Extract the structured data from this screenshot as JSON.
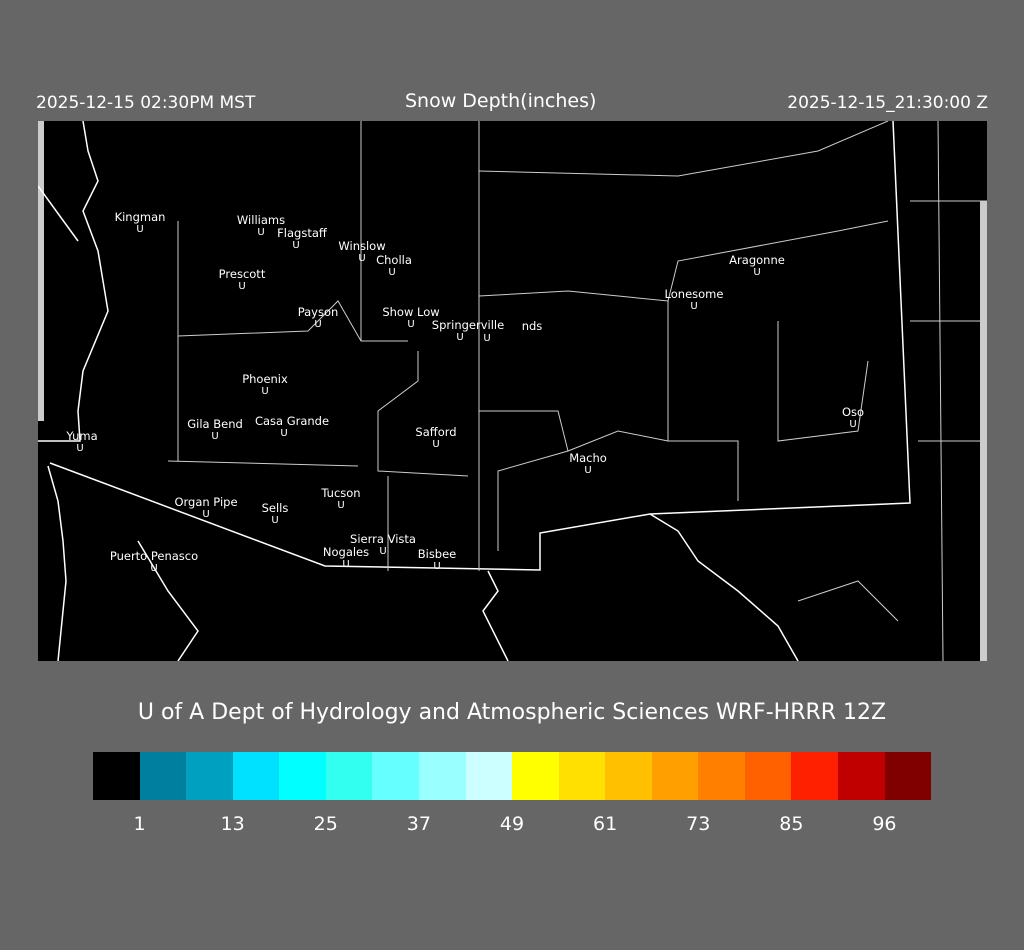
{
  "header": {
    "local_time": "2025-12-15 02:30PM MST",
    "title": "Snow Depth(inches)",
    "valid_time": "2025-12-15_21:30:00 Z"
  },
  "map": {
    "cities": [
      "Kingman",
      "Williams",
      "Flagstaff",
      "Winslow",
      "Cholla",
      "Prescott",
      "Payson",
      "Show Low",
      "Springerville",
      "nds",
      "Lonesome",
      "Aragonne",
      "Phoenix",
      "Yuma",
      "Gila Bend",
      "Casa Grande",
      "Safford",
      "Macho",
      "Oso",
      "Tucson",
      "Organ Pipe",
      "Sells",
      "Sierra Vista",
      "Nogales",
      "Bisbee",
      "Puerto Penasco"
    ],
    "marker_glyph": "U"
  },
  "credit": "U of A Dept of Hydrology and Atmospheric Sciences WRF-HRRR 12Z",
  "colorbar": {
    "colors": [
      "#000000",
      "#007f9f",
      "#00a0c0",
      "#00e0ff",
      "#00ffff",
      "#33fff0",
      "#66ffff",
      "#99ffff",
      "#ccffff",
      "#ffff00",
      "#ffe000",
      "#ffc000",
      "#ffa000",
      "#ff8000",
      "#ff6000",
      "#ff2000",
      "#c00000",
      "#800000"
    ],
    "labels": [
      "1",
      "13",
      "25",
      "37",
      "49",
      "61",
      "73",
      "85",
      "96"
    ]
  }
}
